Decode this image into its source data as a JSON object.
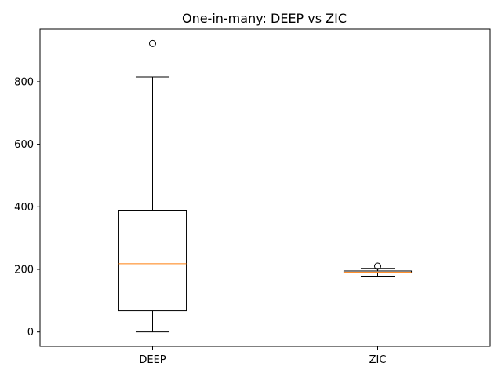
{
  "chart_data": {
    "type": "box",
    "title": "One-in-many: DEEP vs ZIC",
    "xlabel": "",
    "ylabel": "",
    "categories": [
      "DEEP",
      "ZIC"
    ],
    "boxes": [
      {
        "name": "DEEP",
        "whisker_low": 0,
        "q1": 68,
        "median": 218,
        "q3": 387,
        "whisker_high": 815,
        "outliers": [
          922
        ]
      },
      {
        "name": "ZIC",
        "whisker_low": 176,
        "q1": 189,
        "median": 191,
        "q3": 195,
        "whisker_high": 203,
        "outliers": [
          210
        ]
      }
    ],
    "ylim": [
      -46,
      968
    ],
    "yticks": [
      0,
      200,
      400,
      600,
      800
    ],
    "grid": false,
    "colors": {
      "box": "#000000",
      "median": "#ff7f0e",
      "outlier": "#000000"
    }
  }
}
